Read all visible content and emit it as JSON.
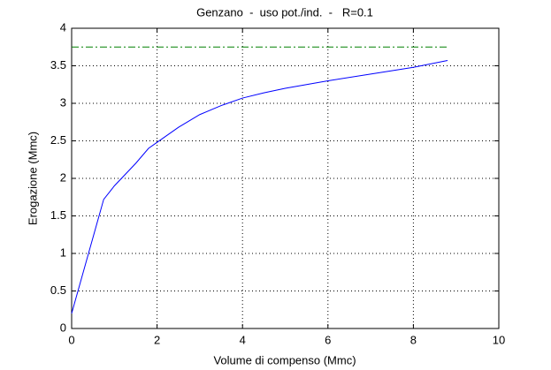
{
  "chart_data": {
    "type": "line",
    "title": "Genzano  -  uso pot./ind.  -   R=0.1",
    "xlabel": "Volume di compenso (Mmc)",
    "ylabel": "Erogazione (Mmc)",
    "xlim": [
      0,
      10
    ],
    "xticks": [
      0,
      2,
      4,
      6,
      8,
      10
    ],
    "ylim": [
      0,
      4
    ],
    "yticks": [
      0,
      0.5,
      1,
      1.5,
      2,
      2.5,
      3,
      3.5,
      4
    ],
    "grid": true,
    "series": [
      {
        "color": "#0000ff",
        "linestyle": "solid",
        "x": [
          0,
          0.75,
          1,
          1.5,
          1.8,
          2,
          2.5,
          3,
          3.5,
          4,
          4.5,
          5,
          6,
          7,
          8,
          8.8
        ],
        "values": [
          0.2,
          1.72,
          1.9,
          2.2,
          2.4,
          2.48,
          2.68,
          2.85,
          2.97,
          3.07,
          3.14,
          3.2,
          3.3,
          3.39,
          3.48,
          3.57
        ]
      },
      {
        "color": "#008000",
        "linestyle": "dashdot",
        "x": [
          0,
          8.8
        ],
        "values": [
          3.75,
          3.75
        ]
      }
    ]
  }
}
